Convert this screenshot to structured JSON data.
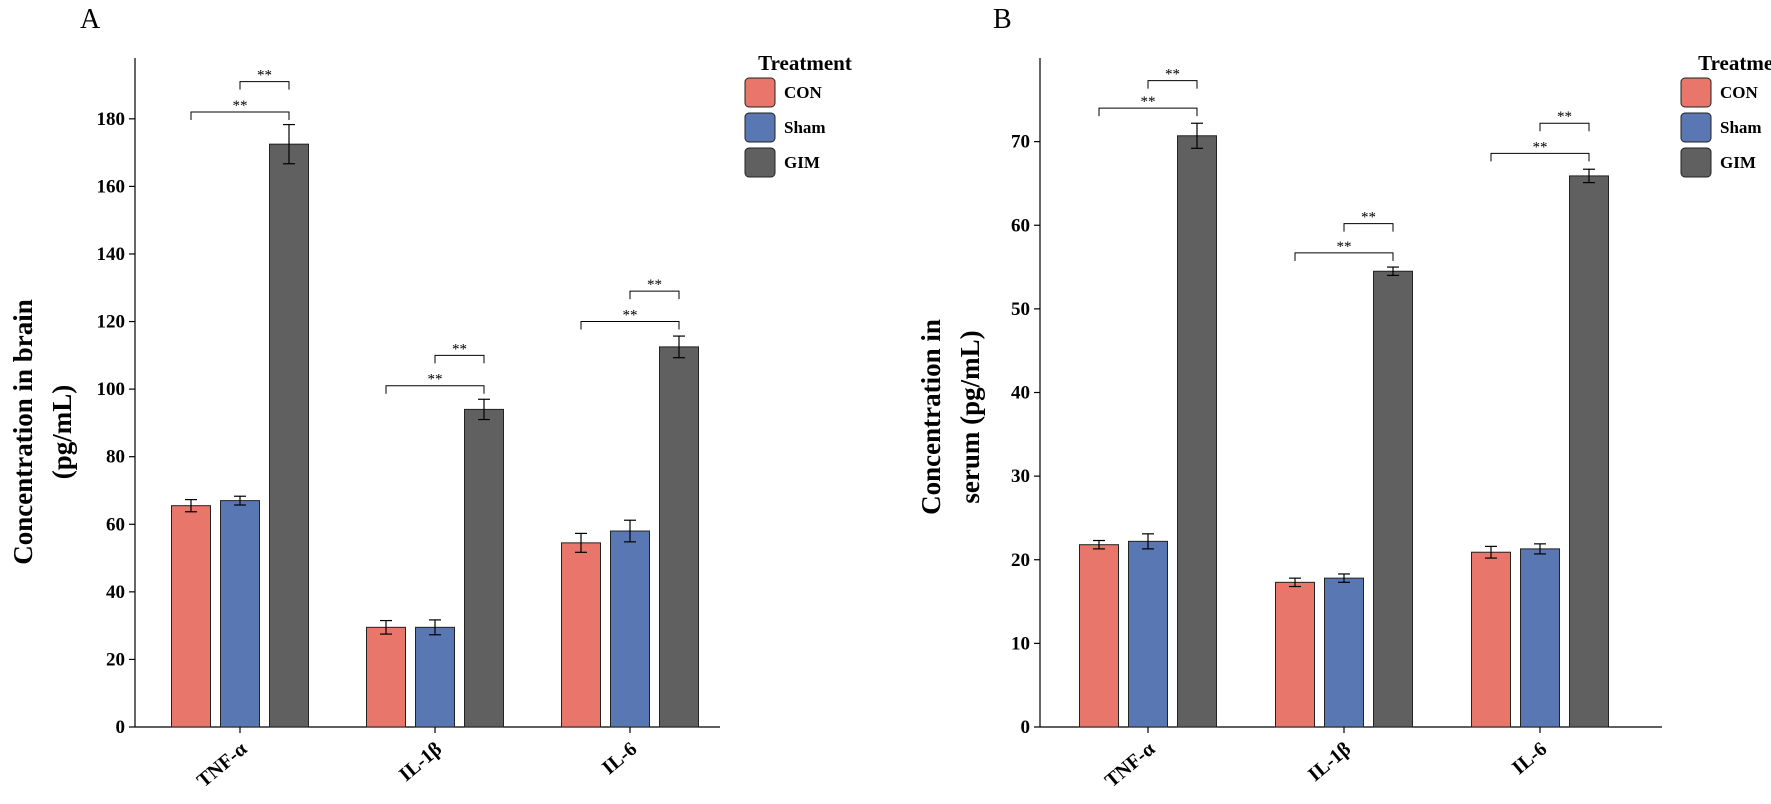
{
  "chart_data": [
    {
      "panel": "A",
      "type": "bar",
      "ylabel_lines": [
        "Concentration in brain",
        "(pg/mL)"
      ],
      "categories": [
        "TNF-α",
        "IL-1β",
        "IL-6"
      ],
      "ylim": [
        0,
        198
      ],
      "yticks": [
        0,
        20,
        40,
        60,
        80,
        100,
        120,
        140,
        160,
        180
      ],
      "legend_title": "Treatment",
      "series": [
        {
          "name": "CON",
          "color": "#E8766B",
          "values": [
            65.5,
            29.5,
            54.5
          ],
          "errors": [
            1.8,
            2.0,
            2.8
          ]
        },
        {
          "name": "Sham",
          "color": "#5977B3",
          "values": [
            67.0,
            29.5,
            58.0
          ],
          "errors": [
            1.3,
            2.2,
            3.2
          ]
        },
        {
          "name": "GIM",
          "color": "#606060",
          "values": [
            172.5,
            94.0,
            112.5
          ],
          "errors": [
            5.8,
            3.0,
            3.2
          ]
        }
      ],
      "significance": [
        {
          "category": 0,
          "label": "**",
          "brackets": [
            {
              "from": 1,
              "to": 2,
              "y": 191
            },
            {
              "from": 0,
              "to": 2,
              "y": 182
            }
          ]
        },
        {
          "category": 1,
          "label": "**",
          "brackets": [
            {
              "from": 1,
              "to": 2,
              "y": 110
            },
            {
              "from": 0,
              "to": 2,
              "y": 101
            }
          ]
        },
        {
          "category": 2,
          "label": "**",
          "brackets": [
            {
              "from": 1,
              "to": 2,
              "y": 129
            },
            {
              "from": 0,
              "to": 2,
              "y": 120
            }
          ]
        }
      ]
    },
    {
      "panel": "B",
      "type": "bar",
      "ylabel_lines": [
        "Concentration in",
        "serum (pg/mL)"
      ],
      "categories": [
        "TNF-α",
        "IL-1β",
        "IL-6"
      ],
      "ylim": [
        0,
        80
      ],
      "yticks": [
        0,
        10,
        20,
        30,
        40,
        50,
        60,
        70
      ],
      "legend_title": "Treatment",
      "series": [
        {
          "name": "CON",
          "color": "#E8766B",
          "values": [
            21.8,
            17.3,
            20.9
          ],
          "errors": [
            0.5,
            0.5,
            0.7
          ]
        },
        {
          "name": "Sham",
          "color": "#5977B3",
          "values": [
            22.2,
            17.8,
            21.3
          ],
          "errors": [
            0.9,
            0.5,
            0.6
          ]
        },
        {
          "name": "GIM",
          "color": "#606060",
          "values": [
            70.7,
            54.5,
            65.9
          ],
          "errors": [
            1.5,
            0.5,
            0.8
          ]
        }
      ],
      "significance": [
        {
          "category": 0,
          "label": "**",
          "brackets": [
            {
              "from": 1,
              "to": 2,
              "y": 77.3
            },
            {
              "from": 0,
              "to": 2,
              "y": 74.0
            }
          ]
        },
        {
          "category": 1,
          "label": "**",
          "brackets": [
            {
              "from": 1,
              "to": 2,
              "y": 60.2
            },
            {
              "from": 0,
              "to": 2,
              "y": 56.7
            }
          ]
        },
        {
          "category": 2,
          "label": "**",
          "brackets": [
            {
              "from": 1,
              "to": 2,
              "y": 72.2
            },
            {
              "from": 0,
              "to": 2,
              "y": 68.6
            }
          ]
        }
      ]
    }
  ]
}
